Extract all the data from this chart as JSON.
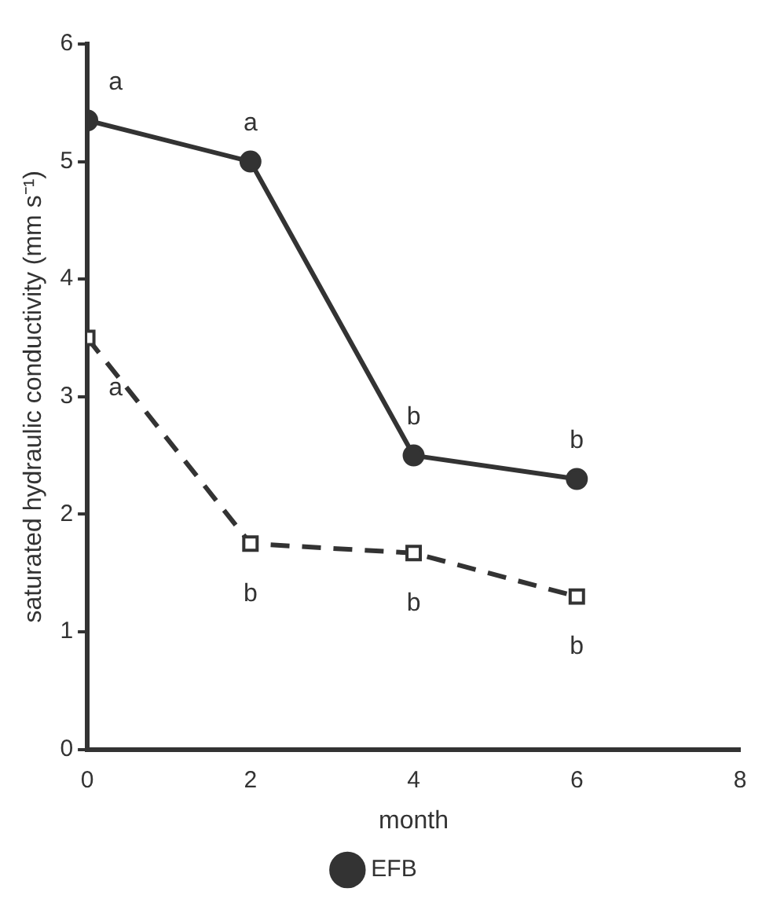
{
  "chart_data": {
    "type": "line",
    "xlabel": "month",
    "ylabel": "saturated hydraulic conductivity (mm s⁻¹)",
    "x": [
      0,
      2,
      4,
      6
    ],
    "series": [
      {
        "name": "EFB",
        "color": "#333333",
        "values": [
          5.35,
          5.0,
          2.5,
          2.3
        ],
        "marker": "circle",
        "line_style": "solid"
      },
      {
        "color": "#333333",
        "values": [
          3.5,
          1.75,
          1.67,
          1.3
        ],
        "marker": "square",
        "line_style": "dashed"
      }
    ],
    "xlim": [
      0,
      8
    ],
    "xticks": [
      0,
      2,
      4,
      6,
      8
    ],
    "ylim": [
      0,
      6
    ],
    "yticks": [
      0,
      1,
      2,
      3,
      4,
      5,
      6
    ],
    "grid": false,
    "legend": "bottom",
    "annotations": [
      {
        "text": "a",
        "x": 0,
        "y": 5.35
      },
      {
        "text": "a",
        "x": 2,
        "y": 5.0
      },
      {
        "text": "b",
        "x": 4,
        "y": 2.5
      },
      {
        "text": "b",
        "x": 6,
        "y": 2.3
      },
      {
        "text": "a",
        "x": 0,
        "y": 3.5
      },
      {
        "text": "b",
        "x": 2,
        "y": 1.75
      },
      {
        "text": "b",
        "x": 4,
        "y": 1.67
      },
      {
        "text": "b",
        "x": 6,
        "y": 1.3
      }
    ]
  }
}
